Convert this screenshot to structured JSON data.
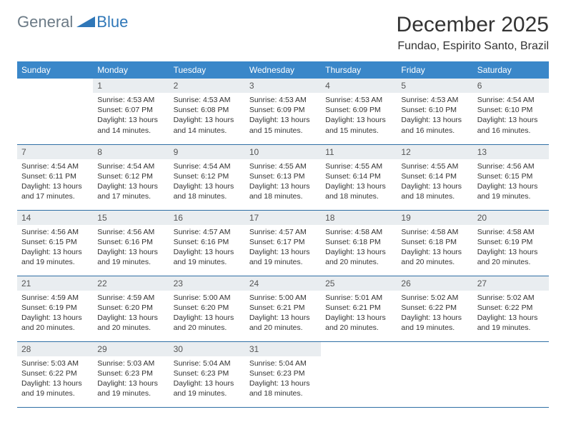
{
  "brand": {
    "part1": "General",
    "part2": "Blue"
  },
  "title": "December 2025",
  "location": "Fundao, Espirito Santo, Brazil",
  "colors": {
    "header_bg": "#3a87c9",
    "header_text": "#ffffff",
    "daynum_bg": "#e9edf0",
    "row_border": "#2f6fa5",
    "logo_general": "#6b7a86",
    "logo_blue": "#2f77b8"
  },
  "weekdays": [
    "Sunday",
    "Monday",
    "Tuesday",
    "Wednesday",
    "Thursday",
    "Friday",
    "Saturday"
  ],
  "calendar": {
    "weeks": [
      [
        {
          "empty": true
        },
        {
          "day": "1",
          "sunrise": "Sunrise: 4:53 AM",
          "sunset": "Sunset: 6:07 PM",
          "daylight": "Daylight: 13 hours and 14 minutes."
        },
        {
          "day": "2",
          "sunrise": "Sunrise: 4:53 AM",
          "sunset": "Sunset: 6:08 PM",
          "daylight": "Daylight: 13 hours and 14 minutes."
        },
        {
          "day": "3",
          "sunrise": "Sunrise: 4:53 AM",
          "sunset": "Sunset: 6:09 PM",
          "daylight": "Daylight: 13 hours and 15 minutes."
        },
        {
          "day": "4",
          "sunrise": "Sunrise: 4:53 AM",
          "sunset": "Sunset: 6:09 PM",
          "daylight": "Daylight: 13 hours and 15 minutes."
        },
        {
          "day": "5",
          "sunrise": "Sunrise: 4:53 AM",
          "sunset": "Sunset: 6:10 PM",
          "daylight": "Daylight: 13 hours and 16 minutes."
        },
        {
          "day": "6",
          "sunrise": "Sunrise: 4:54 AM",
          "sunset": "Sunset: 6:10 PM",
          "daylight": "Daylight: 13 hours and 16 minutes."
        }
      ],
      [
        {
          "day": "7",
          "sunrise": "Sunrise: 4:54 AM",
          "sunset": "Sunset: 6:11 PM",
          "daylight": "Daylight: 13 hours and 17 minutes."
        },
        {
          "day": "8",
          "sunrise": "Sunrise: 4:54 AM",
          "sunset": "Sunset: 6:12 PM",
          "daylight": "Daylight: 13 hours and 17 minutes."
        },
        {
          "day": "9",
          "sunrise": "Sunrise: 4:54 AM",
          "sunset": "Sunset: 6:12 PM",
          "daylight": "Daylight: 13 hours and 18 minutes."
        },
        {
          "day": "10",
          "sunrise": "Sunrise: 4:55 AM",
          "sunset": "Sunset: 6:13 PM",
          "daylight": "Daylight: 13 hours and 18 minutes."
        },
        {
          "day": "11",
          "sunrise": "Sunrise: 4:55 AM",
          "sunset": "Sunset: 6:14 PM",
          "daylight": "Daylight: 13 hours and 18 minutes."
        },
        {
          "day": "12",
          "sunrise": "Sunrise: 4:55 AM",
          "sunset": "Sunset: 6:14 PM",
          "daylight": "Daylight: 13 hours and 18 minutes."
        },
        {
          "day": "13",
          "sunrise": "Sunrise: 4:56 AM",
          "sunset": "Sunset: 6:15 PM",
          "daylight": "Daylight: 13 hours and 19 minutes."
        }
      ],
      [
        {
          "day": "14",
          "sunrise": "Sunrise: 4:56 AM",
          "sunset": "Sunset: 6:15 PM",
          "daylight": "Daylight: 13 hours and 19 minutes."
        },
        {
          "day": "15",
          "sunrise": "Sunrise: 4:56 AM",
          "sunset": "Sunset: 6:16 PM",
          "daylight": "Daylight: 13 hours and 19 minutes."
        },
        {
          "day": "16",
          "sunrise": "Sunrise: 4:57 AM",
          "sunset": "Sunset: 6:16 PM",
          "daylight": "Daylight: 13 hours and 19 minutes."
        },
        {
          "day": "17",
          "sunrise": "Sunrise: 4:57 AM",
          "sunset": "Sunset: 6:17 PM",
          "daylight": "Daylight: 13 hours and 19 minutes."
        },
        {
          "day": "18",
          "sunrise": "Sunrise: 4:58 AM",
          "sunset": "Sunset: 6:18 PM",
          "daylight": "Daylight: 13 hours and 20 minutes."
        },
        {
          "day": "19",
          "sunrise": "Sunrise: 4:58 AM",
          "sunset": "Sunset: 6:18 PM",
          "daylight": "Daylight: 13 hours and 20 minutes."
        },
        {
          "day": "20",
          "sunrise": "Sunrise: 4:58 AM",
          "sunset": "Sunset: 6:19 PM",
          "daylight": "Daylight: 13 hours and 20 minutes."
        }
      ],
      [
        {
          "day": "21",
          "sunrise": "Sunrise: 4:59 AM",
          "sunset": "Sunset: 6:19 PM",
          "daylight": "Daylight: 13 hours and 20 minutes."
        },
        {
          "day": "22",
          "sunrise": "Sunrise: 4:59 AM",
          "sunset": "Sunset: 6:20 PM",
          "daylight": "Daylight: 13 hours and 20 minutes."
        },
        {
          "day": "23",
          "sunrise": "Sunrise: 5:00 AM",
          "sunset": "Sunset: 6:20 PM",
          "daylight": "Daylight: 13 hours and 20 minutes."
        },
        {
          "day": "24",
          "sunrise": "Sunrise: 5:00 AM",
          "sunset": "Sunset: 6:21 PM",
          "daylight": "Daylight: 13 hours and 20 minutes."
        },
        {
          "day": "25",
          "sunrise": "Sunrise: 5:01 AM",
          "sunset": "Sunset: 6:21 PM",
          "daylight": "Daylight: 13 hours and 20 minutes."
        },
        {
          "day": "26",
          "sunrise": "Sunrise: 5:02 AM",
          "sunset": "Sunset: 6:22 PM",
          "daylight": "Daylight: 13 hours and 19 minutes."
        },
        {
          "day": "27",
          "sunrise": "Sunrise: 5:02 AM",
          "sunset": "Sunset: 6:22 PM",
          "daylight": "Daylight: 13 hours and 19 minutes."
        }
      ],
      [
        {
          "day": "28",
          "sunrise": "Sunrise: 5:03 AM",
          "sunset": "Sunset: 6:22 PM",
          "daylight": "Daylight: 13 hours and 19 minutes."
        },
        {
          "day": "29",
          "sunrise": "Sunrise: 5:03 AM",
          "sunset": "Sunset: 6:23 PM",
          "daylight": "Daylight: 13 hours and 19 minutes."
        },
        {
          "day": "30",
          "sunrise": "Sunrise: 5:04 AM",
          "sunset": "Sunset: 6:23 PM",
          "daylight": "Daylight: 13 hours and 19 minutes."
        },
        {
          "day": "31",
          "sunrise": "Sunrise: 5:04 AM",
          "sunset": "Sunset: 6:23 PM",
          "daylight": "Daylight: 13 hours and 18 minutes."
        },
        {
          "empty": true
        },
        {
          "empty": true
        },
        {
          "empty": true
        }
      ]
    ]
  }
}
